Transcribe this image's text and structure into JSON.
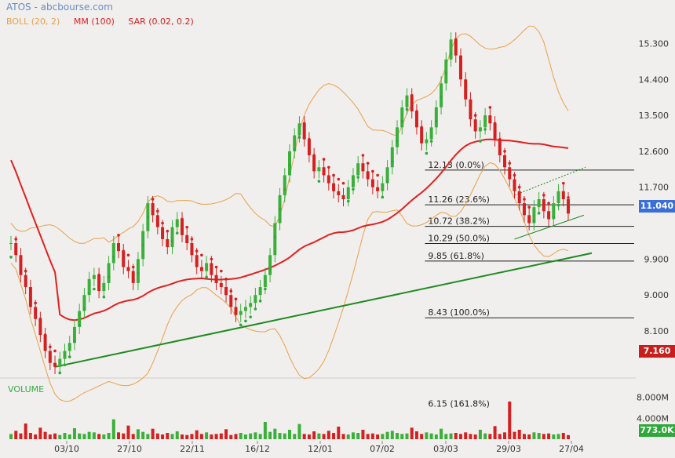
{
  "header": {
    "title": "ATOS - abcbourse.com"
  },
  "legend": {
    "boll": {
      "label": "BOLL (20, 2)",
      "color": "#e8a04a"
    },
    "mm": {
      "label": "MM (100)",
      "color": "#e02020"
    },
    "sar": {
      "label": "SAR (0.02, 0.2)",
      "color": "#d42020"
    }
  },
  "badges": {
    "last_price": {
      "label": "11.040",
      "color": "#3a6fd8"
    },
    "low_price": {
      "label": "7.160",
      "color": "#c81e1e"
    },
    "last_volume": {
      "label": "773.0K",
      "color": "#2ea83a"
    }
  },
  "volume_panel": {
    "label": "VOLUME"
  },
  "chart_data": {
    "type": "candlestick",
    "price_axis": {
      "ticks": [
        {
          "v": 15.3,
          "label": "15.300"
        },
        {
          "v": 14.4,
          "label": "14.400"
        },
        {
          "v": 13.5,
          "label": "13.500"
        },
        {
          "v": 12.6,
          "label": "12.600"
        },
        {
          "v": 11.7,
          "label": "11.700"
        },
        {
          "v": 9.9,
          "label": "9.900"
        },
        {
          "v": 9.0,
          "label": "9.000"
        },
        {
          "v": 8.1,
          "label": "8.100"
        }
      ],
      "range": [
        7.0,
        15.8
      ]
    },
    "volume_axis": {
      "ticks": [
        {
          "v": 8000,
          "label": "8.000M"
        },
        {
          "v": 4000,
          "label": "4.000M"
        }
      ],
      "range": [
        0,
        9000
      ]
    },
    "x_labels": [
      "03/10",
      "27/10",
      "22/11",
      "16/12",
      "12/01",
      "07/02",
      "03/03",
      "29/03",
      "27/04"
    ],
    "fibonacci": [
      {
        "label": "12.13 (0.0%)",
        "v": 12.13
      },
      {
        "label": "11.26 (23.6%)",
        "v": 11.26
      },
      {
        "label": "10.72 (38.2%)",
        "v": 10.72
      },
      {
        "label": "10.29 (50.0%)",
        "v": 10.29
      },
      {
        "label": "9.85 (61.8%)",
        "v": 9.85
      },
      {
        "label": "8.43 (100.0%)",
        "v": 8.43
      },
      {
        "label": "6.15 (161.8%)",
        "v": 6.15
      }
    ],
    "closes": [
      10.3,
      10.0,
      9.5,
      9.2,
      8.7,
      8.4,
      8.0,
      7.6,
      7.3,
      7.2,
      7.4,
      7.6,
      7.8,
      8.2,
      8.6,
      9.0,
      9.4,
      9.5,
      9.1,
      9.3,
      9.8,
      10.3,
      10.1,
      9.7,
      9.6,
      9.3,
      9.9,
      10.6,
      11.3,
      11.0,
      10.7,
      10.4,
      10.2,
      10.7,
      10.9,
      10.5,
      10.3,
      10.0,
      9.7,
      9.6,
      9.8,
      9.5,
      9.3,
      9.2,
      9.0,
      8.7,
      8.5,
      8.6,
      8.7,
      8.8,
      9.0,
      9.2,
      9.5,
      10.0,
      10.8,
      11.5,
      12.0,
      12.6,
      13.0,
      13.3,
      12.9,
      12.5,
      12.1,
      12.2,
      12.0,
      11.8,
      11.6,
      11.5,
      11.4,
      11.7,
      12.0,
      12.3,
      12.1,
      11.9,
      11.7,
      11.6,
      11.8,
      12.2,
      12.7,
      13.2,
      13.7,
      14.0,
      13.6,
      13.2,
      12.8,
      12.9,
      13.2,
      13.7,
      14.3,
      14.9,
      15.4,
      15.0,
      14.4,
      13.9,
      13.4,
      13.1,
      13.2,
      13.5,
      13.3,
      12.9,
      12.5,
      12.2,
      11.9,
      11.6,
      11.3,
      11.0,
      10.8,
      11.2,
      11.4,
      11.1,
      10.9,
      11.3,
      11.6,
      11.4,
      11.04
    ],
    "volumes": [
      1.0,
      1.6,
      1.1,
      3.0,
      1.2,
      0.9,
      2.2,
      1.4,
      0.9,
      1.1,
      0.8,
      1.2,
      0.9,
      2.1,
      1.1,
      1.0,
      1.4,
      1.3,
      1.0,
      0.9,
      1.2,
      3.8,
      1.3,
      1.1,
      2.6,
      1.0,
      1.9,
      1.4,
      1.0,
      2.0,
      1.1,
      0.9,
      1.2,
      1.0,
      1.5,
      0.9,
      0.8,
      1.0,
      1.7,
      1.0,
      1.3,
      0.9,
      1.0,
      1.1,
      1.9,
      0.8,
      1.0,
      1.2,
      0.9,
      1.1,
      1.3,
      1.0,
      3.3,
      1.4,
      2.0,
      1.2,
      1.1,
      1.8,
      1.0,
      2.9,
      1.0,
      0.9,
      1.5,
      1.1,
      1.0,
      1.6,
      1.2,
      2.4,
      1.0,
      0.9,
      1.3,
      1.2,
      1.8,
      1.0,
      1.1,
      0.9,
      1.0,
      1.4,
      1.6,
      1.2,
      1.0,
      1.1,
      2.2,
      1.5,
      1.0,
      1.3,
      1.1,
      0.9,
      2.0,
      1.0,
      1.1,
      1.2,
      1.0,
      1.3,
      1.0,
      0.9,
      1.8,
      1.1,
      1.0,
      2.5,
      1.0,
      1.3,
      7.2,
      1.4,
      1.8,
      1.0,
      0.9,
      1.3,
      1.2,
      1.0,
      1.1,
      0.9,
      1.0,
      1.2,
      0.77
    ]
  }
}
